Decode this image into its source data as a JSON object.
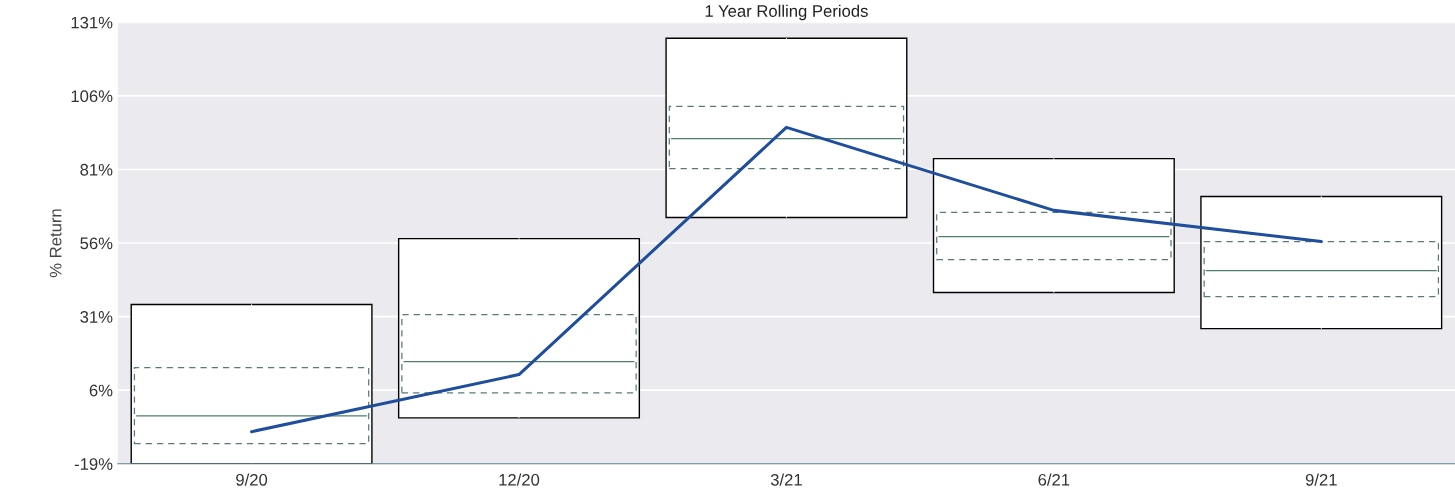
{
  "chart_data": {
    "type": "box",
    "title": "1 Year Rolling Periods",
    "ylabel": "% Return",
    "categories": [
      "9/20",
      "12/20",
      "3/21",
      "6/21",
      "9/21"
    ],
    "boxes": [
      {
        "low": -19,
        "q1": -12.2,
        "median": -2.7,
        "q3": 13.7,
        "high": 35.1
      },
      {
        "low": -3.4,
        "q1": 5.1,
        "median": 15.7,
        "q3": 31.7,
        "high": 57.5
      },
      {
        "low": 64.7,
        "q1": 81.3,
        "median": 91.5,
        "q3": 102.4,
        "high": 125.6
      },
      {
        "low": 39.2,
        "q1": 50.4,
        "median": 58.2,
        "q3": 66.4,
        "high": 84.7
      },
      {
        "low": 26.9,
        "q1": 37.8,
        "median": 46.6,
        "q3": 56.5,
        "high": 71.8
      }
    ],
    "series": [
      {
        "type": "line",
        "color": "#1f4e9c",
        "values": [
          -8.1,
          11.3,
          95.3,
          67.1,
          56.5
        ]
      }
    ],
    "ylim": [
      -19,
      131
    ],
    "yticks": [
      {
        "value": -19,
        "label": "-19%"
      },
      {
        "value": 6,
        "label": "6%"
      },
      {
        "value": 31,
        "label": "31%"
      },
      {
        "value": 56,
        "label": "56%"
      },
      {
        "value": 81,
        "label": "81%"
      },
      {
        "value": 106,
        "label": "106%"
      },
      {
        "value": 131,
        "label": "131%"
      }
    ],
    "grid": "y",
    "legend": false
  }
}
